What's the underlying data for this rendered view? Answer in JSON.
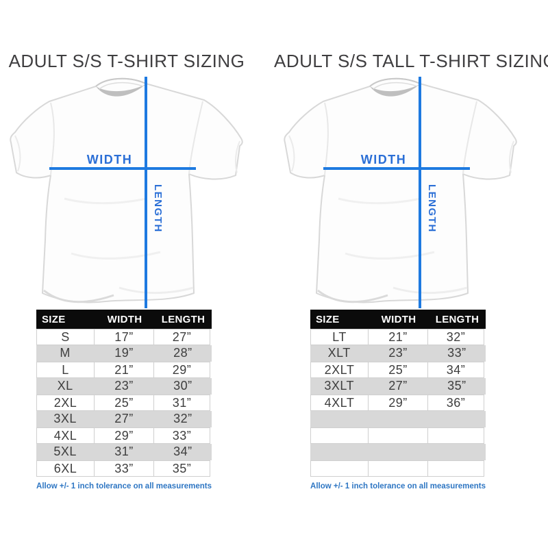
{
  "colors": {
    "line_blue": "#1e7ae0",
    "label_blue": "#2b6fd6",
    "note_blue": "#2e76c3",
    "header_bg": "#0b0b0b",
    "row_alt": "#d8d8d8",
    "title_color": "#3f3e40"
  },
  "panels": [
    {
      "title": "ADULT S/S T-SHIRT SIZING",
      "width_label": "WIDTH",
      "length_label": "LENGTH",
      "table": {
        "headers": [
          "SIZE",
          "WIDTH",
          "LENGTH"
        ],
        "rows": [
          [
            "S",
            "17”",
            "27”"
          ],
          [
            "M",
            "19”",
            "28”"
          ],
          [
            "L",
            "21”",
            "29”"
          ],
          [
            "XL",
            "23”",
            "30”"
          ],
          [
            "2XL",
            "25”",
            "31”"
          ],
          [
            "3XL",
            "27”",
            "32”"
          ],
          [
            "4XL",
            "29”",
            "33”"
          ],
          [
            "5XL",
            "31”",
            "34”"
          ],
          [
            "6XL",
            "33”",
            "35”"
          ]
        ]
      },
      "note": "Allow +/- 1 inch tolerance on all measurements"
    },
    {
      "title": "ADULT S/S TALL T-SHIRT SIZING",
      "width_label": "WIDTH",
      "length_label": "LENGTH",
      "table": {
        "headers": [
          "SIZE",
          "WIDTH",
          "LENGTH"
        ],
        "rows": [
          [
            "LT",
            "21”",
            "32”"
          ],
          [
            "XLT",
            "23”",
            "33”"
          ],
          [
            "2XLT",
            "25”",
            "34”"
          ],
          [
            "3XLT",
            "27”",
            "35”"
          ],
          [
            "4XLT",
            "29”",
            "36”"
          ],
          [
            "",
            "",
            ""
          ],
          [
            "",
            "",
            ""
          ],
          [
            "",
            "",
            ""
          ],
          [
            "",
            "",
            ""
          ]
        ]
      },
      "note": "Allow +/- 1 inch tolerance on all measurements"
    }
  ]
}
